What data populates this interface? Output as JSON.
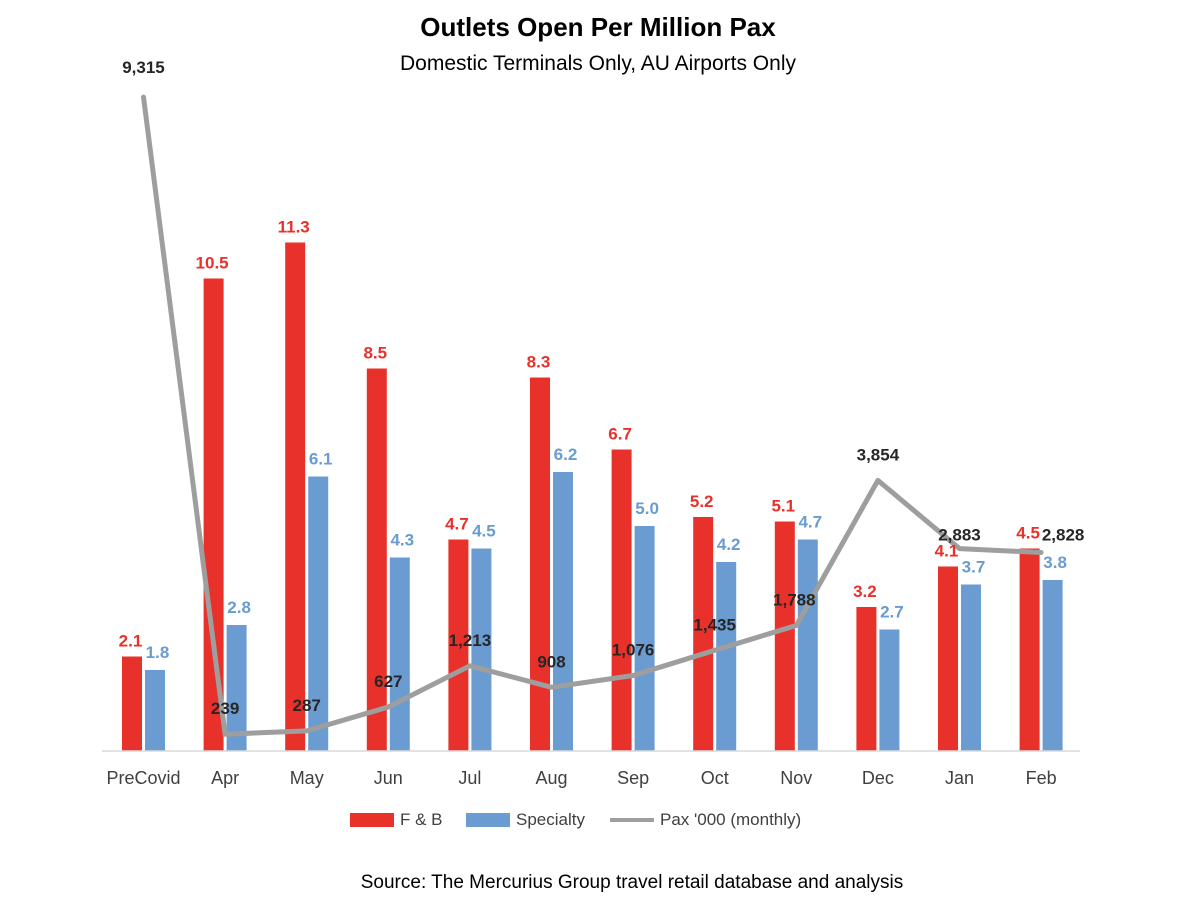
{
  "title": "Outlets Open Per Million Pax",
  "subtitle": "Domestic Terminals Only, AU Airports Only",
  "source": "Source: The Mercurius Group travel retail database and analysis",
  "colors": {
    "fb": "#e8312a",
    "specialty": "#6a9bd1",
    "pax": "#9e9e9e",
    "fb_label": "#e8312a",
    "specialty_label": "#6a9bd1",
    "pax_label": "#262626"
  },
  "chart_data": {
    "type": "bar",
    "categories": [
      "PreCovid",
      "Apr",
      "May",
      "Jun",
      "Jul",
      "Aug",
      "Sep",
      "Oct",
      "Nov",
      "Dec",
      "Jan",
      "Feb"
    ],
    "series": [
      {
        "name": "F & B",
        "type": "bar",
        "values": [
          2.1,
          10.5,
          11.3,
          8.5,
          4.7,
          8.3,
          6.7,
          5.2,
          5.1,
          3.2,
          4.1,
          4.5
        ],
        "labels": [
          "2.1",
          "10.5",
          "11.3",
          "8.5",
          "4.7",
          "8.3",
          "6.7",
          "5.2",
          "5.1",
          "3.2",
          "4.1",
          "4.5"
        ]
      },
      {
        "name": "Specialty",
        "type": "bar",
        "values": [
          1.8,
          2.8,
          6.1,
          4.3,
          4.5,
          6.2,
          5.0,
          4.2,
          4.7,
          2.7,
          3.7,
          3.8
        ],
        "labels": [
          "1.8",
          "2.8",
          "6.1",
          "4.3",
          "4.5",
          "6.2",
          "5.0",
          "4.2",
          "4.7",
          "2.7",
          "3.7",
          "3.8"
        ]
      },
      {
        "name": "Pax '000 (monthly)",
        "type": "line",
        "axis": "secondary",
        "values": [
          9315,
          239,
          287,
          627,
          1213,
          908,
          1076,
          1435,
          1788,
          3854,
          2883,
          2828
        ],
        "labels": [
          "9,315",
          "239",
          "287",
          "627",
          "1,213",
          "908",
          "1,076",
          "1,435",
          "1,788",
          "3,854",
          "2,883",
          "2,828"
        ]
      }
    ],
    "ylim": [
      0,
      12
    ],
    "y2lim": [
      0,
      10000
    ],
    "legend_position": "bottom",
    "grid": false
  }
}
